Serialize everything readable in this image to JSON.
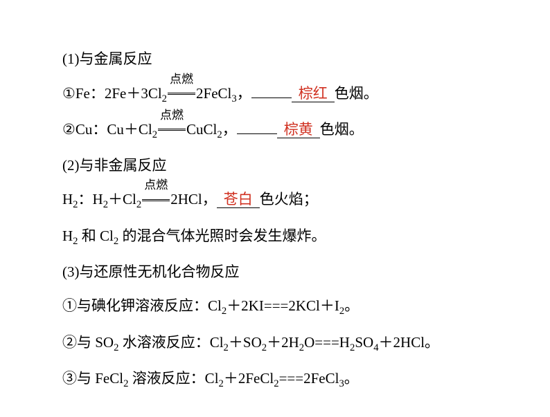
{
  "colors": {
    "text": "#000000",
    "answer": "#d03020",
    "background": "#ffffff"
  },
  "font": {
    "family": "SimSun",
    "body_size": 21,
    "condition_size": 17
  },
  "condition_label": "点燃",
  "section1": {
    "heading": "(1)与金属反应",
    "item1": {
      "num": "①",
      "prefix": "Fe：2Fe＋3Cl",
      "sub1": "2",
      "product": "2FeCl",
      "sub2": "3",
      "comma": "，",
      "answer": "棕红",
      "suffix": "色烟。"
    },
    "item2": {
      "num": "②",
      "prefix": "Cu：Cu＋Cl",
      "sub1": "2",
      "product": "CuCl",
      "sub2": "2",
      "comma": "，",
      "answer": "棕黄",
      "suffix": "色烟。"
    }
  },
  "section2": {
    "heading": "(2)与非金属反应",
    "item1": {
      "prefix": "H",
      "sub0": "2",
      "mid1": "：H",
      "sub1": "2",
      "mid2": "＋Cl",
      "sub2": "2",
      "product": "2HCl，",
      "answer": "苍白",
      "suffix": "色火焰；"
    },
    "note_p1": "H",
    "note_s1": "2",
    "note_p2": " 和 Cl",
    "note_s2": "2",
    "note_p3": " 的混合气体光照时会发生爆炸。"
  },
  "section3": {
    "heading": "(3)与还原性无机化合物反应",
    "item1": {
      "num": "①",
      "p1": "与碘化钾溶液反应：Cl",
      "s1": "2",
      "p2": "＋2KI===2KCl＋I",
      "s2": "2",
      "p3": "。"
    },
    "item2": {
      "num": "②",
      "p1": "与 SO",
      "s1": "2",
      "p2": " 水溶液反应：Cl",
      "s2": "2",
      "p3": "＋SO",
      "s3": "2",
      "p4": "＋2H",
      "s4": "2",
      "p5": "O===H",
      "s5": "2",
      "p6": "SO",
      "s6": "4",
      "p7": "＋2HCl。"
    },
    "item3": {
      "num": "③",
      "p1": "与 FeCl",
      "s1": "2",
      "p2": " 溶液反应：Cl",
      "s2": "2",
      "p3": "＋2FeCl",
      "s3": "2",
      "p4": "===2FeCl",
      "s4": "3",
      "p5": "。"
    }
  }
}
